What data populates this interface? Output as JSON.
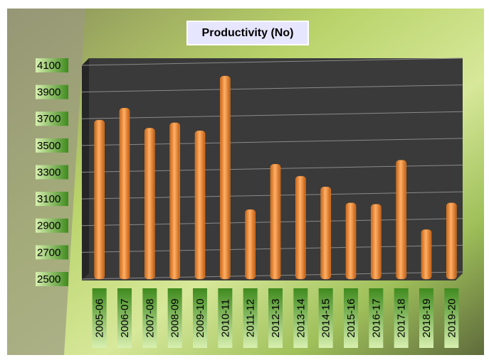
{
  "chart_data": {
    "type": "bar",
    "title": "Productivity (No)",
    "categories": [
      "2005-06",
      "2006-07",
      "2007-08",
      "2008-09",
      "2009-10",
      "2010-11",
      "2011-12",
      "2012-13",
      "2013-14",
      "2014-15",
      "2015-16",
      "2016-17",
      "2017-18",
      "2018-19",
      "2019-20"
    ],
    "values": [
      3690,
      3780,
      3630,
      3670,
      3610,
      4020,
      3020,
      3360,
      3270,
      3190,
      3070,
      3060,
      3390,
      2870,
      3070
    ],
    "color": "#f08a2c",
    "ylim": [
      2500,
      4100
    ],
    "yticks": [
      2500,
      2700,
      2900,
      3100,
      3300,
      3500,
      3700,
      3900,
      4100
    ],
    "grid": true
  }
}
